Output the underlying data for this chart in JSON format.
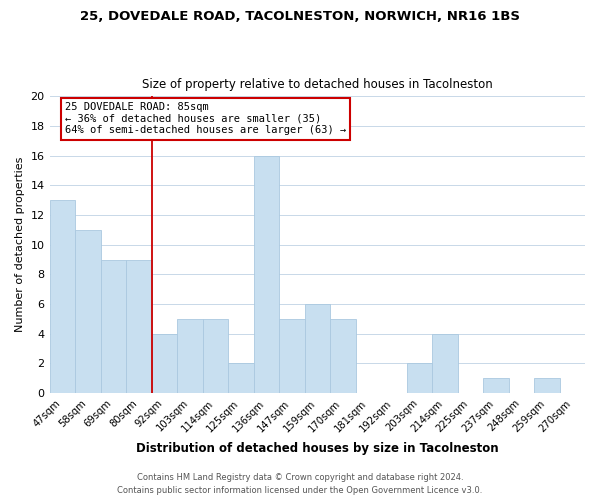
{
  "title1": "25, DOVEDALE ROAD, TACOLNESTON, NORWICH, NR16 1BS",
  "title2": "Size of property relative to detached houses in Tacolneston",
  "xlabel": "Distribution of detached houses by size in Tacolneston",
  "ylabel": "Number of detached properties",
  "bin_labels": [
    "47sqm",
    "58sqm",
    "69sqm",
    "80sqm",
    "92sqm",
    "103sqm",
    "114sqm",
    "125sqm",
    "136sqm",
    "147sqm",
    "159sqm",
    "170sqm",
    "181sqm",
    "192sqm",
    "203sqm",
    "214sqm",
    "225sqm",
    "237sqm",
    "248sqm",
    "259sqm",
    "270sqm"
  ],
  "bar_heights": [
    13,
    11,
    9,
    9,
    4,
    5,
    5,
    2,
    16,
    5,
    6,
    5,
    0,
    0,
    2,
    4,
    0,
    1,
    0,
    1,
    0
  ],
  "bar_color": "#c8dff0",
  "bar_edge_color": "#aac8e0",
  "ylim": [
    0,
    20
  ],
  "yticks": [
    0,
    2,
    4,
    6,
    8,
    10,
    12,
    14,
    16,
    18,
    20
  ],
  "annotation_title": "25 DOVEDALE ROAD: 85sqm",
  "annotation_line1": "← 36% of detached houses are smaller (35)",
  "annotation_line2": "64% of semi-detached houses are larger (63) →",
  "footer1": "Contains HM Land Registry data © Crown copyright and database right 2024.",
  "footer2": "Contains public sector information licensed under the Open Government Licence v3.0.",
  "vline_color": "#cc0000",
  "annotation_box_edge": "#cc0000",
  "background_color": "#ffffff",
  "grid_color": "#c8d8e8"
}
